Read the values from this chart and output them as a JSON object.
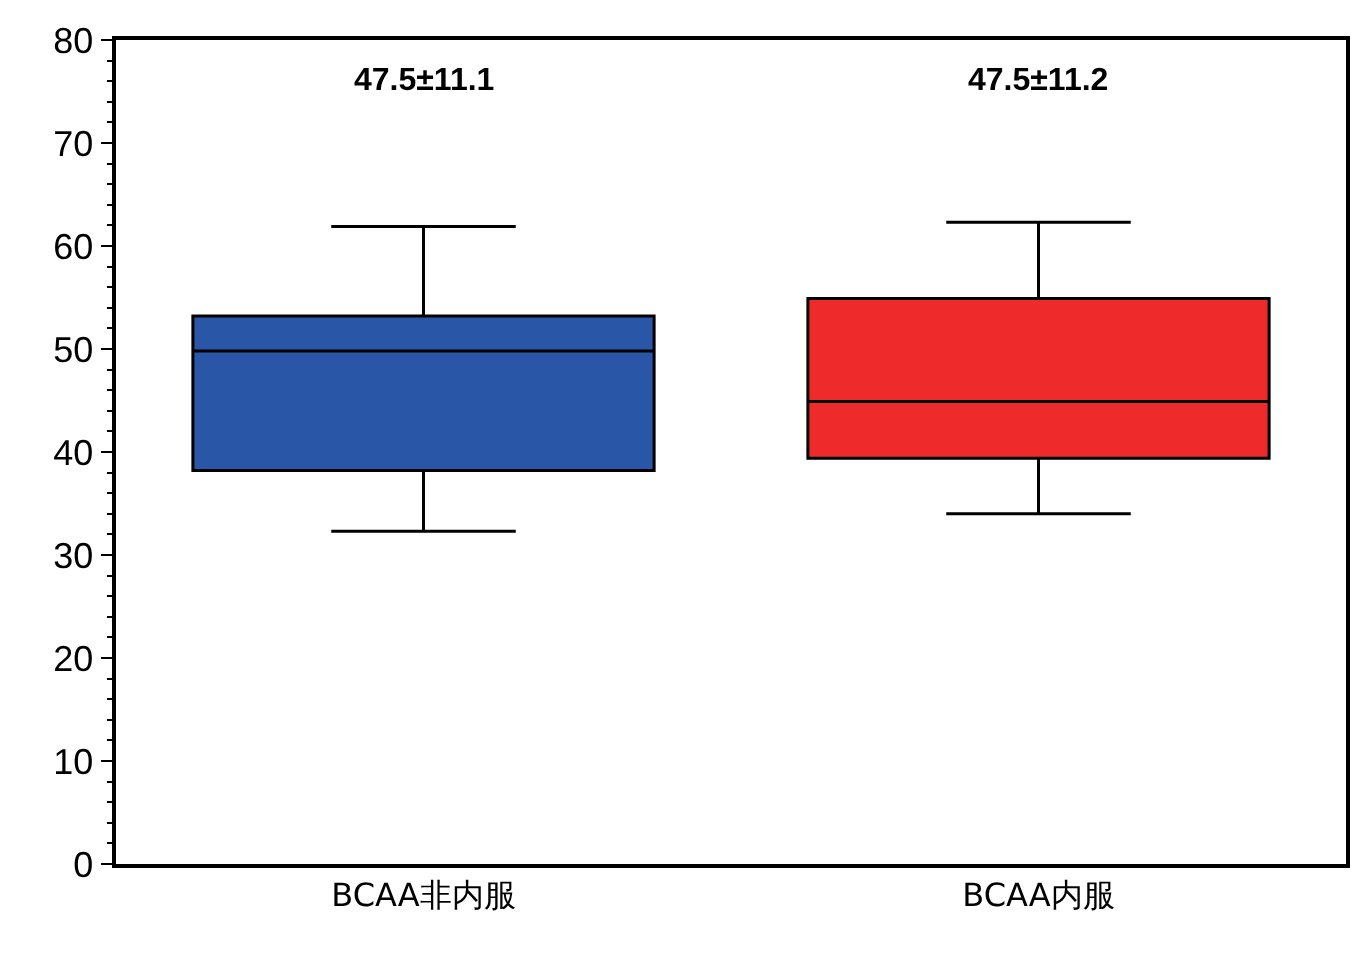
{
  "chart_data": {
    "type": "box",
    "categories": [
      "BCAA非内服",
      "BCAA内服"
    ],
    "series": [
      {
        "color": "#2a56a8",
        "boxes": [
          {
            "low": 32.3,
            "q1": 38.2,
            "median": 49.8,
            "q3": 53.2,
            "high": 61.9
          },
          null
        ]
      },
      {
        "color": "#ee2a2a",
        "boxes": [
          null,
          {
            "low": 34,
            "q1": 39.4,
            "median": 44.9,
            "q3": 54.9,
            "high": 62.3
          }
        ]
      }
    ],
    "ylim": [
      0,
      80
    ],
    "yticks": [
      0,
      10,
      20,
      30,
      40,
      50,
      60,
      70,
      80
    ],
    "grid": false,
    "annotations": [
      "47.5±11.1",
      "47.5±11.2"
    ]
  }
}
